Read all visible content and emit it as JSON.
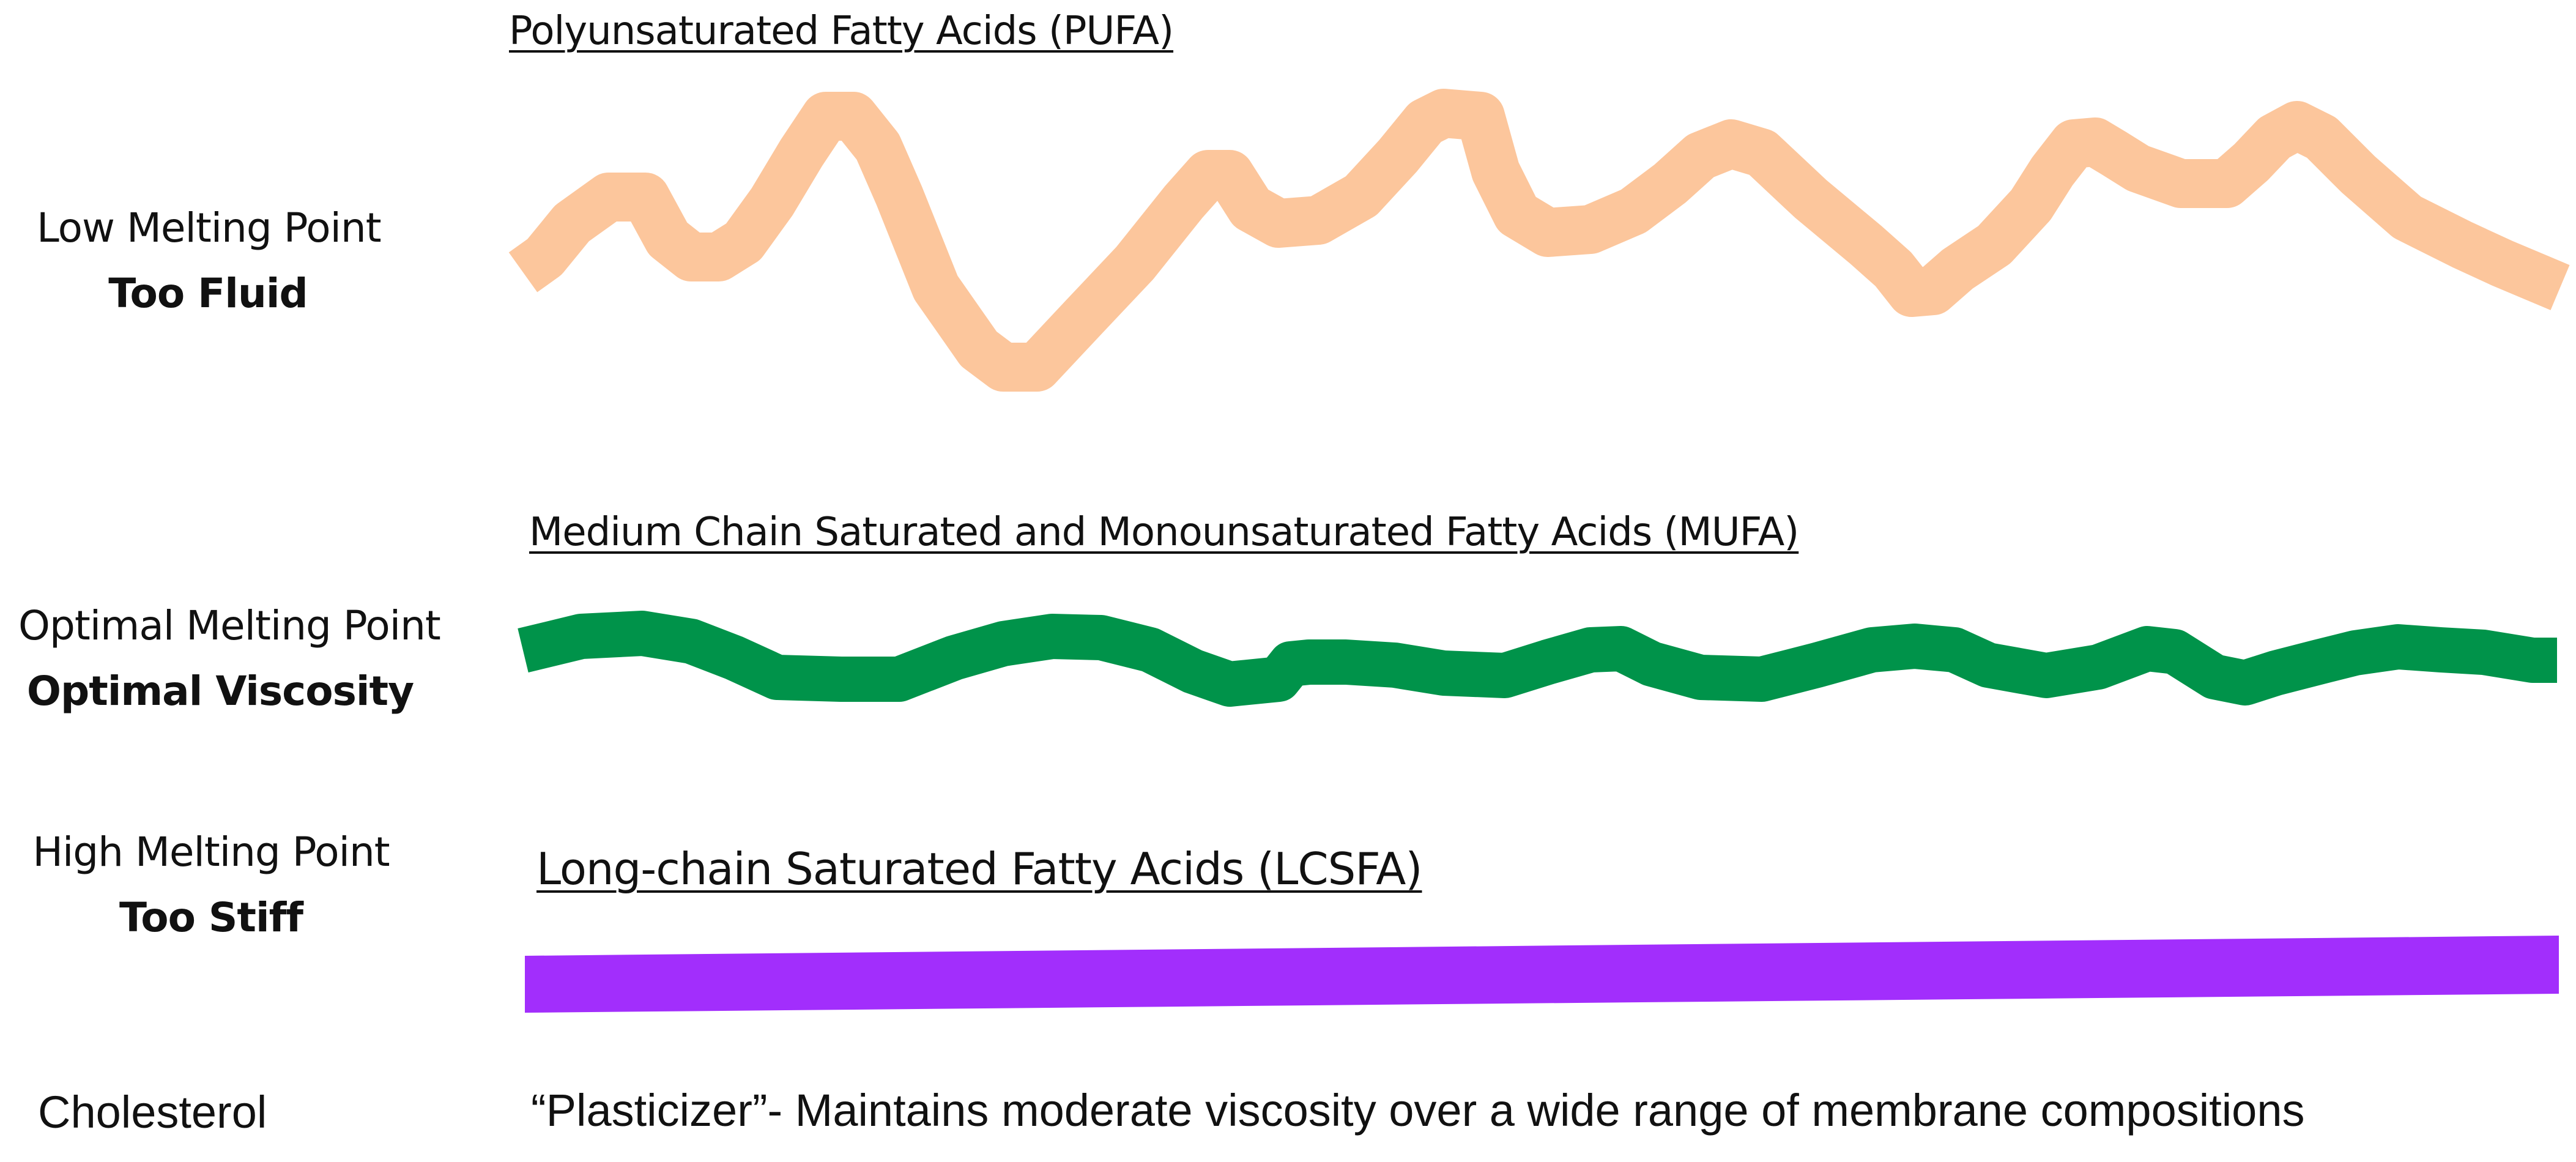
{
  "colors": {
    "pufa": "#fcc69c",
    "mufa": "#00934a",
    "lcsfa": "#a22efc",
    "text": "#111111",
    "background": "#ffffff"
  },
  "rows": [
    {
      "id": "pufa",
      "state": "Low Melting Point",
      "verdict": "Too Fluid",
      "title": "Polyunsaturated Fatty Acids (PUFA)",
      "chain_shape": "highly-kinked"
    },
    {
      "id": "mufa",
      "state": "Optimal Melting Point",
      "verdict": "Optimal Viscosity",
      "title": "Medium Chain Saturated and Monounsaturated Fatty Acids (MUFA)",
      "chain_shape": "gently-wavy"
    },
    {
      "id": "lcsfa",
      "state": "High Melting Point",
      "verdict": "Too Stiff",
      "title": "Long-chain Saturated Fatty Acids (LCSFA)",
      "chain_shape": "straight"
    }
  ],
  "cholesterol": {
    "label": "Cholesterol",
    "description": "“Plasticizer”- Maintains moderate viscosity over a wide range of membrane compositions"
  }
}
